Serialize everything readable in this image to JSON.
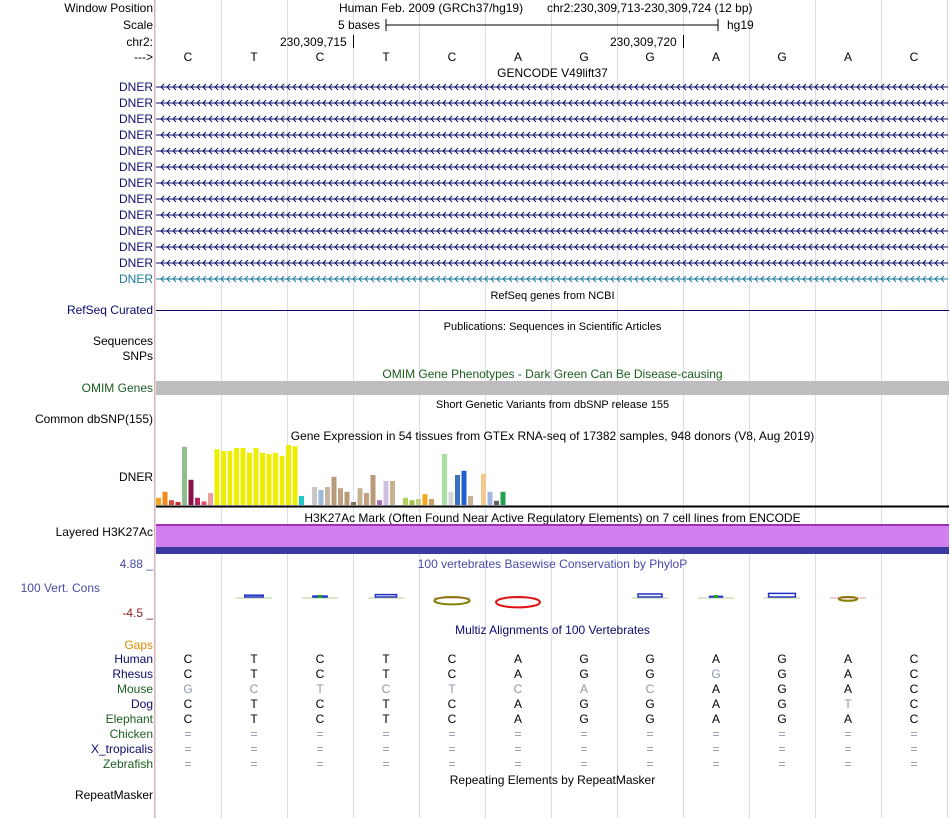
{
  "colors": {
    "navy": "#0a0a6e",
    "gene_dark": "#0d0d6b",
    "gene_light": "#1a7a9a",
    "omim": "#1b5e20",
    "omim_bar": "#bdbdbd",
    "h3k27ac": "#d27ff0",
    "phylop": "#4a4aa8",
    "gaps": "#e08a00",
    "dark_red": "#8b1a1a",
    "mouse_gray": "#8f96a8"
  },
  "header": {
    "window_position_label": "Window Position",
    "scale_label": "Scale",
    "chr_label": "chr2:",
    "strand_label": "--->",
    "assembly_text": "Human Feb. 2009 (GRCh37/hg19)",
    "position_text": "chr2:230,309,713-230,309,724 (12 bp)",
    "scale_text": "5 bases",
    "scale_db": "hg19",
    "tick_left": "230,309,715",
    "tick_right": "230,309,720"
  },
  "reference_bases": [
    "C",
    "T",
    "C",
    "T",
    "C",
    "A",
    "G",
    "G",
    "A",
    "G",
    "A",
    "C"
  ],
  "gencode": {
    "title": "GENCODE V49lift37",
    "transcripts": [
      "DNER",
      "DNER",
      "DNER",
      "DNER",
      "DNER",
      "DNER",
      "DNER",
      "DNER",
      "DNER",
      "DNER",
      "DNER",
      "DNER",
      "DNER"
    ]
  },
  "refseq": {
    "label": "RefSeq Curated",
    "title": "RefSeq genes from NCBI"
  },
  "publications": {
    "title": "Publications: Sequences in Scientific Articles",
    "sequences_label": "Sequences",
    "snps_label": "SNPs"
  },
  "omim": {
    "label": "OMIM Genes",
    "title": "OMIM Gene Phenotypes - Dark Green Can Be Disease-causing"
  },
  "dbsnp": {
    "label": "Common dbSNP(155)",
    "title": "Short Genetic Variants from dbSNP release 155"
  },
  "gtex": {
    "title": "Gene Expression in 54 tissues from GTEx RNA-seq of 17382 samples, 948 donors (V8, Aug 2019)",
    "label": "DNER",
    "bars": [
      {
        "v": 0.12,
        "c": "#f5a623"
      },
      {
        "v": 0.22,
        "c": "#f08a18"
      },
      {
        "v": 0.08,
        "c": "#d9473b"
      },
      {
        "v": 0.05,
        "c": "#c22a2a"
      },
      {
        "v": 0.97,
        "c": "#8fbf8f"
      },
      {
        "v": 0.42,
        "c": "#8a1048"
      },
      {
        "v": 0.12,
        "c": "#b8225a"
      },
      {
        "v": 0.06,
        "c": "#e0506a"
      },
      {
        "v": 0.2,
        "c": "#e8a0a0"
      },
      {
        "v": 0.93,
        "c": "#eeee00"
      },
      {
        "v": 0.9,
        "c": "#eeee00"
      },
      {
        "v": 0.9,
        "c": "#eeee00"
      },
      {
        "v": 0.95,
        "c": "#eeee00"
      },
      {
        "v": 0.95,
        "c": "#eeee00"
      },
      {
        "v": 0.87,
        "c": "#eeee00"
      },
      {
        "v": 0.95,
        "c": "#eeee00"
      },
      {
        "v": 0.87,
        "c": "#eeee00"
      },
      {
        "v": 0.85,
        "c": "#eeee00"
      },
      {
        "v": 0.87,
        "c": "#eeee00"
      },
      {
        "v": 0.82,
        "c": "#eeee00"
      },
      {
        "v": 1.0,
        "c": "#eeee00"
      },
      {
        "v": 0.98,
        "c": "#eeee00"
      },
      {
        "v": 0.15,
        "c": "#20c8c8"
      },
      {
        "v": 0.0,
        "c": "#ffffff"
      },
      {
        "v": 0.3,
        "c": "#c8c8c8"
      },
      {
        "v": 0.25,
        "c": "#9abad8"
      },
      {
        "v": 0.3,
        "c": "#c8b6a0"
      },
      {
        "v": 0.47,
        "c": "#b89a78"
      },
      {
        "v": 0.28,
        "c": "#c0a080"
      },
      {
        "v": 0.22,
        "c": "#b89a78"
      },
      {
        "v": 0.05,
        "c": "#807060"
      },
      {
        "v": 0.28,
        "c": "#c8b090"
      },
      {
        "v": 0.2,
        "c": "#c0a080"
      },
      {
        "v": 0.5,
        "c": "#b89a78"
      },
      {
        "v": 0.08,
        "c": "#a070b0"
      },
      {
        "v": 0.4,
        "c": "#d0c0e0"
      },
      {
        "v": 0.4,
        "c": "#c8b090"
      },
      {
        "v": 0.0,
        "c": "#ffffff"
      },
      {
        "v": 0.12,
        "c": "#b0d060"
      },
      {
        "v": 0.08,
        "c": "#a0c040"
      },
      {
        "v": 0.1,
        "c": "#c0d080"
      },
      {
        "v": 0.18,
        "c": "#f5a623"
      },
      {
        "v": 0.1,
        "c": "#c8a060"
      },
      {
        "v": 0.0,
        "c": "#ffffff"
      },
      {
        "v": 0.85,
        "c": "#a8e0a0"
      },
      {
        "v": 0.22,
        "c": "#d8d8d8"
      },
      {
        "v": 0.5,
        "c": "#3a70c0"
      },
      {
        "v": 0.57,
        "c": "#2060d0"
      },
      {
        "v": 0.15,
        "c": "#c8b090"
      },
      {
        "v": 0.0,
        "c": "#ffffff"
      },
      {
        "v": 0.52,
        "c": "#f5c890"
      },
      {
        "v": 0.22,
        "c": "#a0b8e0"
      },
      {
        "v": 0.07,
        "c": "#606060"
      },
      {
        "v": 0.22,
        "c": "#20a050"
      }
    ]
  },
  "h3k27ac": {
    "label": "Layered H3K27Ac",
    "title": "H3K27Ac Mark (Often Found Near Active Regulatory Elements) on 7 cell lines from ENCODE"
  },
  "phylop": {
    "title": "100 vertebrates Basewise Conservation by PhyloP",
    "label": "100 Vert. Cons",
    "max_label": "4.88 _",
    "min_label": "-4.5 _",
    "scores": [
      0,
      0.6,
      0.3,
      0.8,
      -1.8,
      -2.8,
      0,
      1.0,
      0.2,
      1.2,
      -0.6,
      0
    ]
  },
  "multiz": {
    "gaps_label": "Gaps",
    "title": "Multiz Alignments of 100 Vertebrates",
    "species": [
      {
        "name": "Human",
        "c": "#0a0a6e",
        "bases": [
          "C",
          "T",
          "C",
          "T",
          "C",
          "A",
          "G",
          "G",
          "A",
          "G",
          "A",
          "C"
        ],
        "diff": []
      },
      {
        "name": "Rhesus",
        "c": "#0a0a6e",
        "bases": [
          "C",
          "T",
          "C",
          "T",
          "C",
          "A",
          "G",
          "G",
          "G",
          "G",
          "A",
          "C"
        ],
        "diff": [
          8
        ]
      },
      {
        "name": "Mouse",
        "c": "#1b5e20",
        "bases": [
          "G",
          "C",
          "T",
          "C",
          "T",
          "C",
          "A",
          "C",
          "A",
          "G",
          "A",
          "C"
        ],
        "diff": [
          0,
          1,
          2,
          3,
          4,
          5,
          6,
          7
        ]
      },
      {
        "name": "Dog",
        "c": "#0a0a6e",
        "bases": [
          "C",
          "T",
          "C",
          "T",
          "C",
          "A",
          "G",
          "G",
          "A",
          "G",
          "T",
          "C"
        ],
        "diff": [
          10
        ]
      },
      {
        "name": "Elephant",
        "c": "#1b5e20",
        "bases": [
          "C",
          "T",
          "C",
          "T",
          "C",
          "A",
          "G",
          "G",
          "A",
          "G",
          "A",
          "C"
        ],
        "diff": []
      },
      {
        "name": "Chicken",
        "c": "#1b5e20",
        "bases": [
          "=",
          "=",
          "=",
          "=",
          "=",
          "=",
          "=",
          "=",
          "=",
          "=",
          "=",
          "="
        ],
        "diff": []
      },
      {
        "name": "X_tropicalis",
        "c": "#0a0a6e",
        "bases": [
          "=",
          "=",
          "=",
          "=",
          "=",
          "=",
          "=",
          "=",
          "=",
          "=",
          "=",
          "="
        ],
        "diff": []
      },
      {
        "name": "Zebrafish",
        "c": "#1b5e20",
        "bases": [
          "=",
          "=",
          "=",
          "=",
          "=",
          "=",
          "=",
          "=",
          "=",
          "=",
          "=",
          "="
        ],
        "diff": []
      }
    ]
  },
  "repeatmasker": {
    "label": "RepeatMasker",
    "title": "Repeating Elements by RepeatMasker"
  }
}
